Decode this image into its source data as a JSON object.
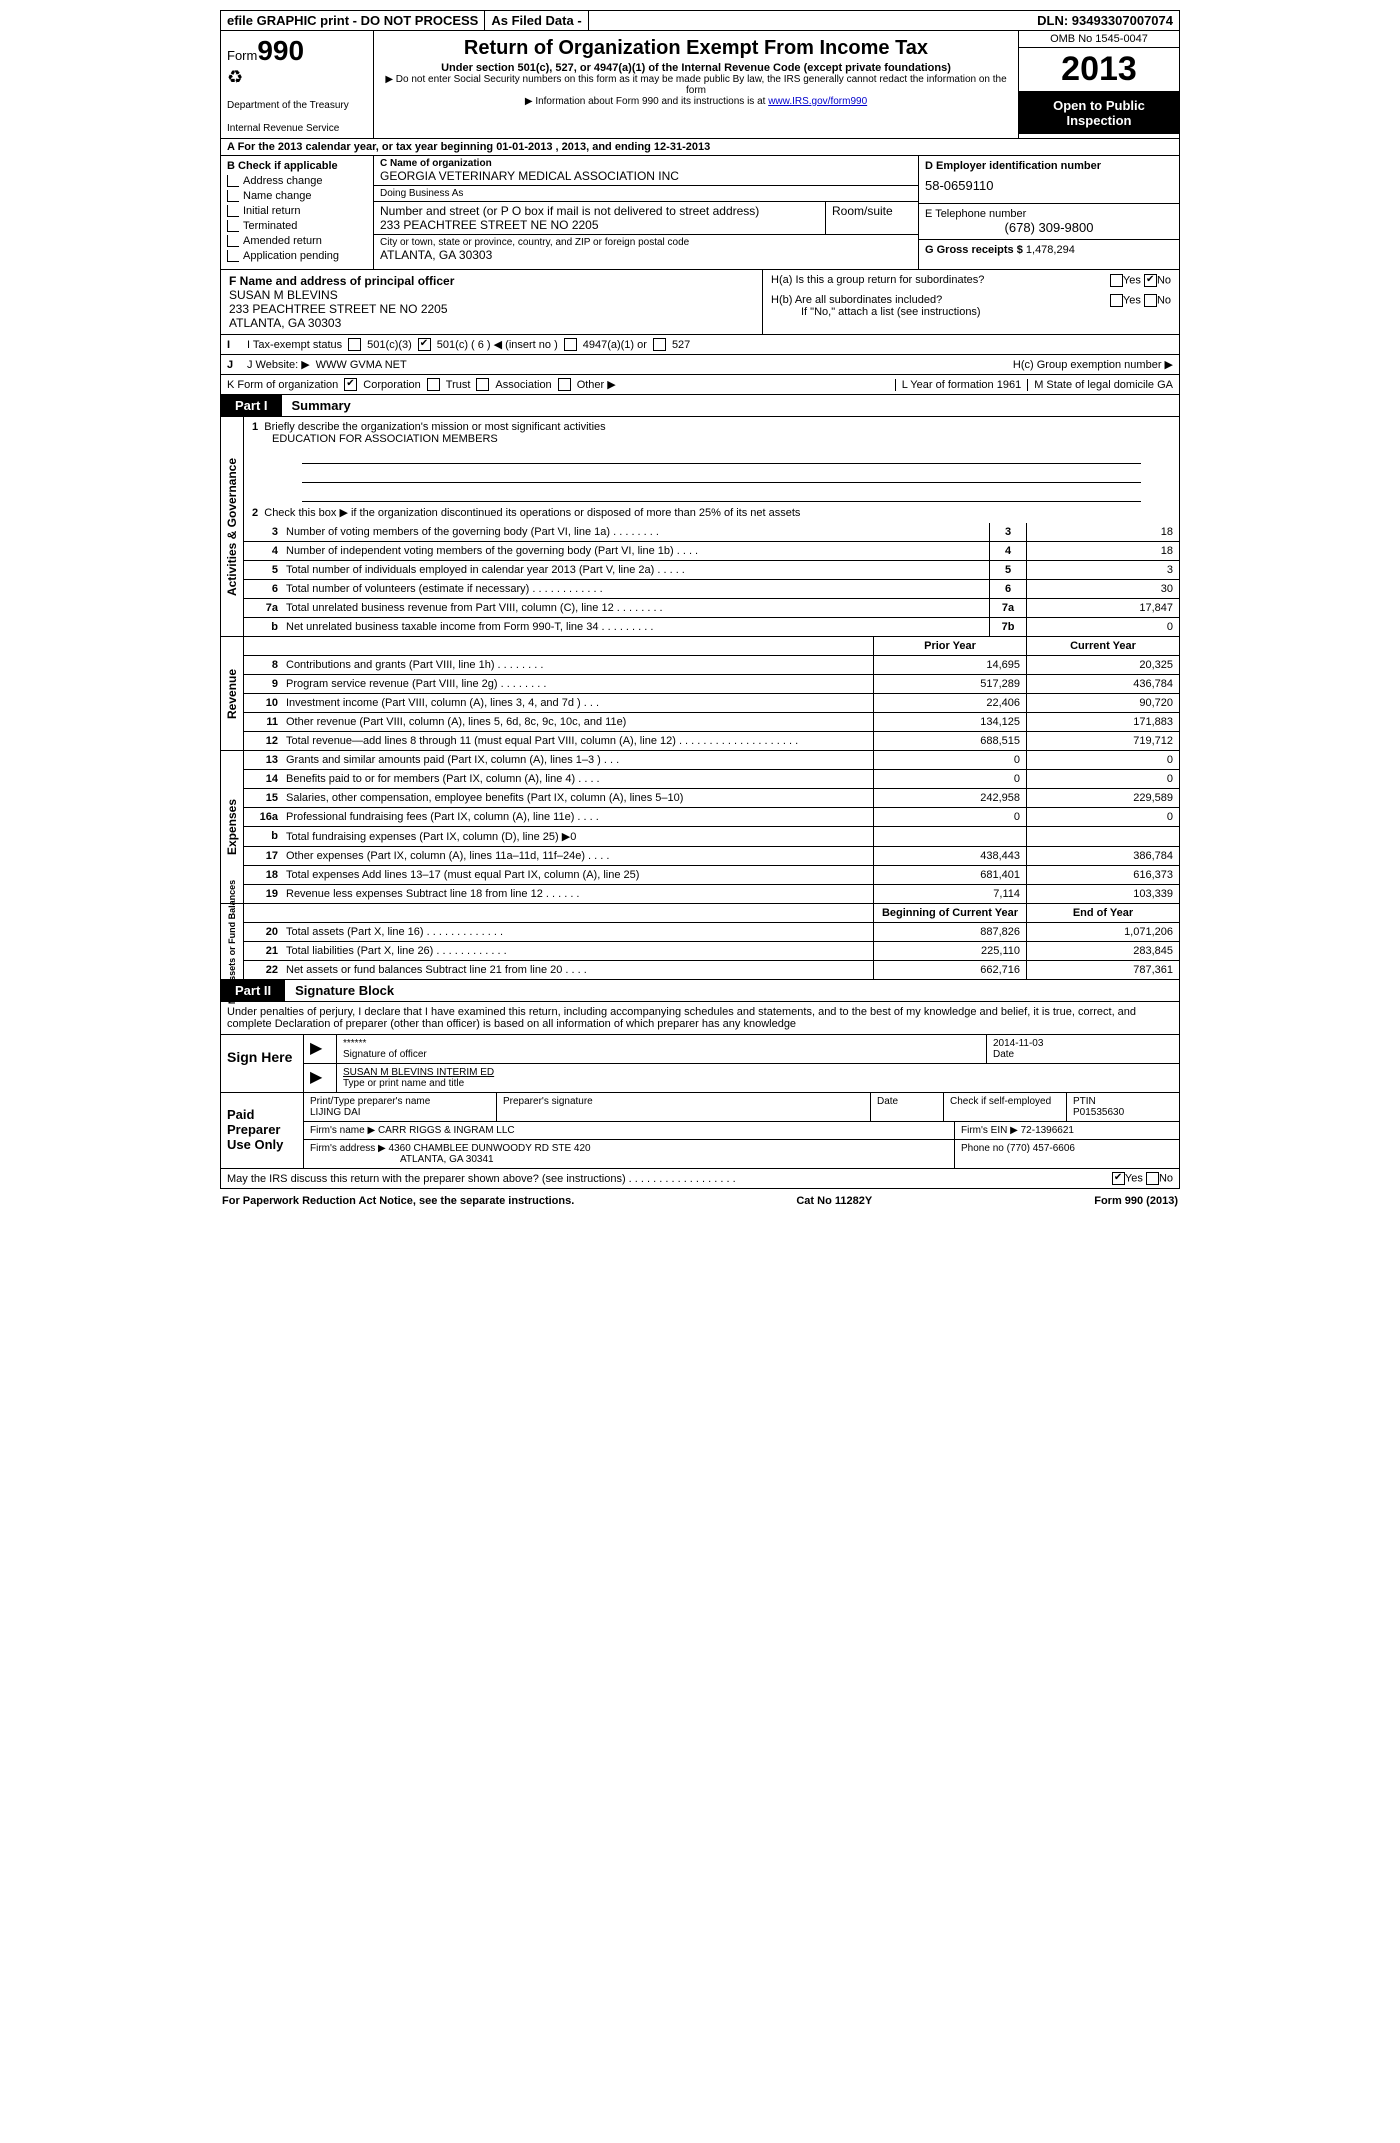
{
  "topbar": {
    "efile": "efile GRAPHIC print - DO NOT PROCESS",
    "asfiled": "As Filed Data -",
    "dln": "DLN: 93493307007074"
  },
  "header": {
    "form_word": "Form",
    "form_no": "990",
    "dept1": "Department of the Treasury",
    "dept2": "Internal Revenue Service",
    "title": "Return of Organization Exempt From Income Tax",
    "sub": "Under section 501(c), 527, or 4947(a)(1) of the Internal Revenue Code (except private foundations)",
    "note1": "▶ Do not enter Social Security numbers on this form as it may be made public  By law, the IRS generally cannot redact the information on the form",
    "note2_pre": "▶ Information about Form 990 and its instructions is at ",
    "note2_link": "www.IRS.gov/form990",
    "omb": "OMB No  1545-0047",
    "year": "2013",
    "open1": "Open to Public",
    "open2": "Inspection"
  },
  "rowA": "A  For the 2013 calendar year, or tax year beginning 01-01-2013     , 2013, and ending 12-31-2013",
  "secB": {
    "hdr": "B  Check if applicable",
    "items": [
      "Address change",
      "Name change",
      "Initial return",
      "Terminated",
      "Amended return",
      "Application pending"
    ]
  },
  "secC": {
    "name_lbl": "C Name of organization",
    "name": "GEORGIA VETERINARY MEDICAL ASSOCIATION INC",
    "dba_lbl": "Doing Business As",
    "addr_lbl": "Number and street (or P O  box if mail is not delivered to street address)",
    "room_lbl": "Room/suite",
    "addr": "233 PEACHTREE STREET NE NO 2205",
    "city_lbl": "City or town, state or province, country, and ZIP or foreign postal code",
    "city": "ATLANTA, GA  30303"
  },
  "secD": {
    "lbl": "D Employer identification number",
    "val": "58-0659110"
  },
  "secE": {
    "lbl": "E Telephone number",
    "val": "(678) 309-9800"
  },
  "secG": {
    "lbl": "G Gross receipts $",
    "val": "1,478,294"
  },
  "secF": {
    "lbl": "F   Name and address of principal officer",
    "l1": "SUSAN M BLEVINS",
    "l2": "233 PEACHTREE STREET NE NO 2205",
    "l3": "ATLANTA, GA  30303"
  },
  "secH": {
    "ha": "H(a)  Is this a group return for subordinates?",
    "hb": "H(b)  Are all subordinates included?",
    "hnote": "If \"No,\" attach a list  (see instructions)",
    "hc": "H(c)   Group exemption number ▶"
  },
  "rowI": {
    "lbl": "I   Tax-exempt status",
    "opts": [
      "501(c)(3)",
      "501(c) ( 6 ) ◀ (insert no )",
      "4947(a)(1) or",
      "527"
    ]
  },
  "rowJ": {
    "lbl": "J   Website: ▶",
    "val": "WWW GVMA NET"
  },
  "rowK": {
    "lbl": "K Form of organization",
    "opts": [
      "Corporation",
      "Trust",
      "Association",
      "Other ▶"
    ],
    "l_lbl": "L Year of formation  1961",
    "m_lbl": "M State of legal domicile   GA"
  },
  "part1": {
    "tag": "Part I",
    "title": "Summary",
    "q1": "Briefly describe the organization's mission or most significant activities",
    "mission": "EDUCATION FOR ASSOCIATION MEMBERS",
    "q2": "Check this box ▶     if the organization discontinued its operations or disposed of more than 25% of its net assets",
    "strips": {
      "ag": "Activities & Governance",
      "rev": "Revenue",
      "exp": "Expenses",
      "na": "Net Assets or\nFund Balances"
    },
    "gov": [
      {
        "n": "3",
        "d": "Number of voting members of the governing body (Part VI, line 1a)   .    .    .    .    .    .    .    .",
        "r": "3",
        "v": "18"
      },
      {
        "n": "4",
        "d": "Number of independent voting members of the governing body (Part VI, line 1b)    .    .    .    .",
        "r": "4",
        "v": "18"
      },
      {
        "n": "5",
        "d": "Total number of individuals employed in calendar year 2013 (Part V, line 2a)   .    .    .    .    .",
        "r": "5",
        "v": "3"
      },
      {
        "n": "6",
        "d": "Total number of volunteers (estimate if necessary)    .    .    .    .    .    .    .    .    .    .    .    .",
        "r": "6",
        "v": "30"
      },
      {
        "n": "7a",
        "d": "Total unrelated business revenue from Part VIII, column (C), line 12  .    .    .    .    .    .    .    .",
        "r": "7a",
        "v": "17,847"
      },
      {
        "n": "b",
        "d": "Net unrelated business taxable income from Form 990-T, line 34   .    .    .    .    .    .    .    .    .",
        "r": "7b",
        "v": "0"
      }
    ],
    "prior_hdr": "Prior Year",
    "curr_hdr": "Current Year",
    "rev": [
      {
        "n": "8",
        "d": "Contributions and grants (Part VIII, line 1h)   .    .    .    .    .    .    .    .",
        "p": "14,695",
        "c": "20,325"
      },
      {
        "n": "9",
        "d": "Program service revenue (Part VIII, line 2g)   .    .    .    .    .    .    .    .",
        "p": "517,289",
        "c": "436,784"
      },
      {
        "n": "10",
        "d": "Investment income (Part VIII, column (A), lines 3, 4, and 7d )    .    .    .",
        "p": "22,406",
        "c": "90,720"
      },
      {
        "n": "11",
        "d": "Other revenue (Part VIII, column (A), lines 5, 6d, 8c, 9c, 10c, and 11e)",
        "p": "134,125",
        "c": "171,883"
      },
      {
        "n": "12",
        "d": "Total revenue—add lines 8 through 11 (must equal Part VIII, column (A), line 12) .    .    .    .    .    .    .    .    .    .    .    .    .    .    .    .    .    .    .    .",
        "p": "688,515",
        "c": "719,712"
      }
    ],
    "exp": [
      {
        "n": "13",
        "d": "Grants and similar amounts paid (Part IX, column (A), lines 1–3 )    .    .    .",
        "p": "0",
        "c": "0"
      },
      {
        "n": "14",
        "d": "Benefits paid to or for members (Part IX, column (A), line 4)   .    .    .    .",
        "p": "0",
        "c": "0"
      },
      {
        "n": "15",
        "d": "Salaries, other compensation, employee benefits (Part IX, column (A), lines 5–10)",
        "p": "242,958",
        "c": "229,589"
      },
      {
        "n": "16a",
        "d": "Professional fundraising fees (Part IX, column (A), line 11e)   .    .    .    .",
        "p": "0",
        "c": "0"
      },
      {
        "n": "b",
        "d": "Total fundraising expenses (Part IX, column (D), line 25) ▶0",
        "p": "",
        "c": ""
      },
      {
        "n": "17",
        "d": "Other expenses (Part IX, column (A), lines 11a–11d, 11f–24e)    .    .    .    .",
        "p": "438,443",
        "c": "386,784"
      },
      {
        "n": "18",
        "d": "Total expenses  Add lines 13–17 (must equal Part IX, column (A), line 25)",
        "p": "681,401",
        "c": "616,373"
      },
      {
        "n": "19",
        "d": "Revenue less expenses  Subtract line 18 from line 12   .    .    .    .    .    .",
        "p": "7,114",
        "c": "103,339"
      }
    ],
    "na_hdr_a": "Beginning of Current Year",
    "na_hdr_b": "End of Year",
    "na": [
      {
        "n": "20",
        "d": "Total assets (Part X, line 16)   .    .    .    .    .    .    .    .    .    .    .    .    .",
        "p": "887,826",
        "c": "1,071,206"
      },
      {
        "n": "21",
        "d": "Total liabilities (Part X, line 26)    .    .    .    .    .    .    .    .    .    .    .    .",
        "p": "225,110",
        "c": "283,845"
      },
      {
        "n": "22",
        "d": "Net assets or fund balances  Subtract line 21 from line 20   .    .    .    .",
        "p": "662,716",
        "c": "787,361"
      }
    ]
  },
  "part2": {
    "tag": "Part II",
    "title": "Signature Block",
    "perjury": "Under penalties of perjury, I declare that I have examined this return, including accompanying schedules and statements, and to the best of my knowledge and belief, it is true, correct, and complete  Declaration of preparer (other than officer) is based on all information of which preparer has any knowledge",
    "sign_here": "Sign Here",
    "sig_stars": "******",
    "sig_date": "2014-11-03",
    "sig_off_lbl": "Signature of officer",
    "date_lbl": "Date",
    "officer": "SUSAN M BLEVINS INTERIM ED",
    "officer_lbl": "Type or print name and title",
    "paid": "Paid Preparer Use Only",
    "prep_name_lbl": "Print/Type preparer's name",
    "prep_name": "LIJING DAI",
    "prep_sig_lbl": "Preparer's signature",
    "prep_date_lbl": "Date",
    "prep_self": "Check       if self-employed",
    "ptin_lbl": "PTIN",
    "ptin": "P01535630",
    "firm_name_lbl": "Firm's name      ▶",
    "firm_name": "CARR RIGGS & INGRAM LLC",
    "firm_ein_lbl": "Firm's EIN ▶",
    "firm_ein": "72-1396621",
    "firm_addr_lbl": "Firm's address ▶",
    "firm_addr": "4360 CHAMBLEE DUNWOODY RD STE 420",
    "firm_city": "ATLANTA, GA  30341",
    "phone_lbl": "Phone no",
    "phone": "(770) 457-6606",
    "discuss": "May the IRS discuss this return with the preparer shown above? (see instructions)   .    .    .    .    .    .    .    .    .    .    .    .    .    .    .    .    .    ."
  },
  "footer": {
    "left": "For Paperwork Reduction Act Notice, see the separate instructions.",
    "mid": "Cat  No  11282Y",
    "right": "Form 990 (2013)"
  },
  "yes": "Yes",
  "no": "No"
}
